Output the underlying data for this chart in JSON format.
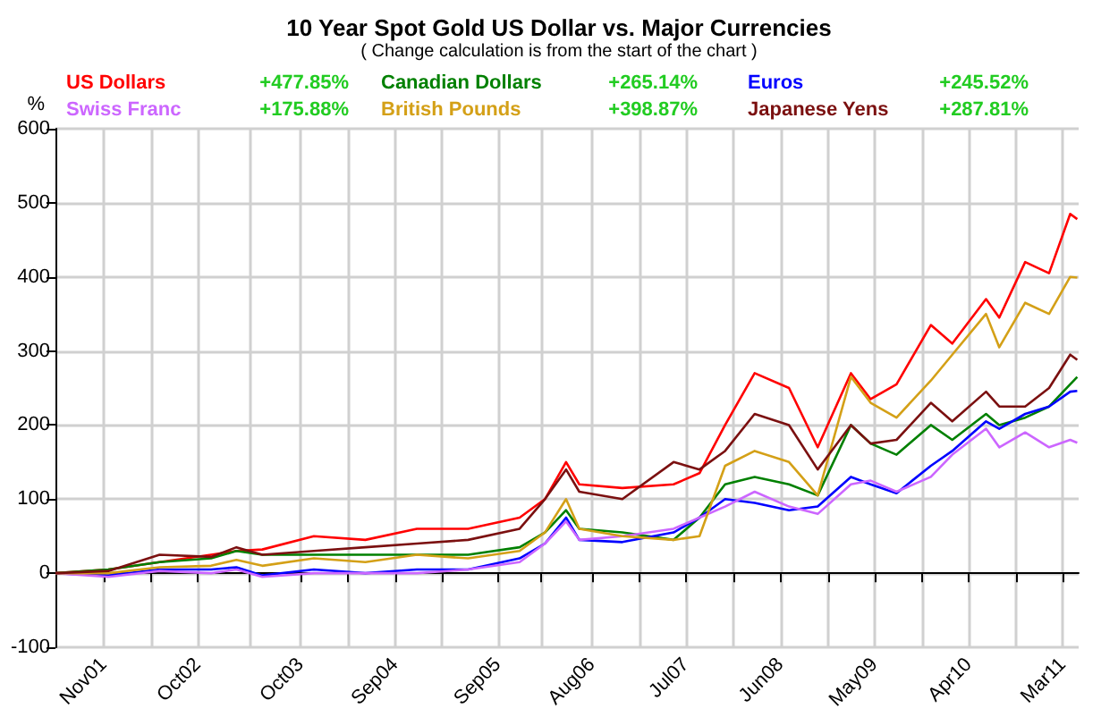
{
  "chart_data": {
    "type": "line",
    "title": "10 Year Spot Gold US Dollar vs. Major Currencies",
    "subtitle": "( Change calculation is from the start of the chart )",
    "ylabel": "%",
    "x": [
      "2001-05-27",
      "2001-12-01",
      "2002-06-01",
      "2002-12-01",
      "2003-03-01",
      "2003-06-01",
      "2003-12-01",
      "2004-06-01",
      "2004-12-01",
      "2005-06-01",
      "2005-12-01",
      "2006-03-01",
      "2006-05-15",
      "2006-07-01",
      "2006-12-01",
      "2007-06-01",
      "2007-09-01",
      "2007-12-01",
      "2008-03-15",
      "2008-07-15",
      "2008-10-25",
      "2009-02-20",
      "2009-05-01",
      "2009-08-01",
      "2009-12-01",
      "2010-02-15",
      "2010-06-15",
      "2010-08-01",
      "2010-11-01",
      "2011-01-25",
      "2011-04-10",
      "2011-05-05"
    ],
    "series": [
      {
        "name": "US Dollars",
        "color": "#ff0000",
        "values": [
          0,
          5,
          15,
          25,
          30,
          32,
          50,
          45,
          60,
          60,
          75,
          100,
          150,
          120,
          115,
          120,
          135,
          200,
          270,
          250,
          170,
          270,
          235,
          255,
          335,
          310,
          370,
          345,
          420,
          405,
          485,
          478
        ]
      },
      {
        "name": "Canadian Dollars",
        "color": "#008000",
        "values": [
          0,
          5,
          15,
          20,
          30,
          25,
          25,
          25,
          25,
          25,
          35,
          55,
          85,
          60,
          55,
          45,
          75,
          120,
          130,
          120,
          105,
          200,
          175,
          160,
          200,
          180,
          215,
          200,
          210,
          225,
          255,
          265
        ]
      },
      {
        "name": "Euros",
        "color": "#0000ff",
        "values": [
          0,
          -3,
          5,
          5,
          8,
          -3,
          5,
          0,
          5,
          5,
          20,
          40,
          75,
          45,
          42,
          55,
          75,
          100,
          95,
          85,
          90,
          130,
          120,
          108,
          145,
          165,
          205,
          195,
          215,
          225,
          245,
          246
        ]
      },
      {
        "name": "Swiss Franc",
        "color": "#cc66ff",
        "values": [
          0,
          -5,
          3,
          0,
          5,
          -5,
          0,
          0,
          0,
          5,
          15,
          40,
          70,
          45,
          50,
          60,
          75,
          90,
          110,
          90,
          80,
          120,
          125,
          110,
          130,
          160,
          195,
          170,
          190,
          170,
          180,
          176
        ]
      },
      {
        "name": "British Pounds",
        "color": "#d4a017",
        "values": [
          0,
          0,
          8,
          10,
          18,
          10,
          20,
          15,
          25,
          20,
          30,
          55,
          100,
          60,
          50,
          45,
          50,
          145,
          165,
          150,
          105,
          265,
          230,
          210,
          260,
          295,
          350,
          305,
          365,
          350,
          400,
          399
        ]
      },
      {
        "name": "Japanese Yens",
        "color": "#7b1010",
        "values": [
          0,
          3,
          25,
          22,
          35,
          25,
          30,
          35,
          40,
          45,
          60,
          100,
          140,
          110,
          100,
          150,
          140,
          165,
          215,
          200,
          140,
          200,
          175,
          180,
          230,
          205,
          245,
          225,
          225,
          250,
          295,
          288
        ]
      }
    ],
    "annotations": [
      "+477.85%",
      "+265.14%",
      "+245.52%",
      "+175.88%",
      "+398.87%",
      "+287.81%"
    ],
    "xlim": [
      "2001-05-27",
      "2011-05-10"
    ],
    "xticks": [
      {
        "value": "2001-11-15",
        "label": "Nov01"
      },
      {
        "value": "2002-05-01",
        "label": null
      },
      {
        "value": "2002-10-15",
        "label": "Oct02"
      },
      {
        "value": "2003-04-15",
        "label": null
      },
      {
        "value": "2003-10-15",
        "label": "Oct03"
      },
      {
        "value": "2004-03-30",
        "label": null
      },
      {
        "value": "2004-09-15",
        "label": "Sep04"
      },
      {
        "value": "2005-03-01",
        "label": null
      },
      {
        "value": "2005-09-15",
        "label": "Sep05"
      },
      {
        "value": "2006-02-15",
        "label": null
      },
      {
        "value": "2006-08-15",
        "label": "Aug06"
      },
      {
        "value": "2007-01-30",
        "label": null
      },
      {
        "value": "2007-07-15",
        "label": "Jul07"
      },
      {
        "value": "2007-12-30",
        "label": null
      },
      {
        "value": "2008-06-15",
        "label": "Jun08"
      },
      {
        "value": "2008-11-30",
        "label": null
      },
      {
        "value": "2009-05-15",
        "label": "May09"
      },
      {
        "value": "2009-10-30",
        "label": null
      },
      {
        "value": "2010-04-15",
        "label": "Apr10"
      },
      {
        "value": "2010-09-30",
        "label": null
      },
      {
        "value": "2011-03-15",
        "label": "Mar11"
      }
    ],
    "ylim": [
      -100,
      600
    ],
    "yticks": [
      -100,
      0,
      100,
      200,
      300,
      400,
      500,
      600
    ],
    "grid": true,
    "legend": "top",
    "marker": "none",
    "line_style": "solid"
  }
}
